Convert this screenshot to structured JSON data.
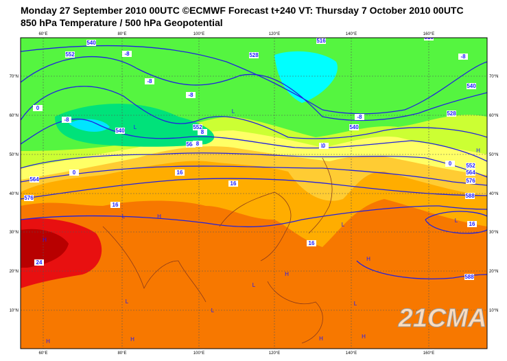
{
  "header": {
    "title": "Monday 27 September 2010 00UTC ©ECMWF Forecast t+240 VT: Thursday 7 October 2010 00UTC",
    "subtitle": "850 hPa Temperature / 500 hPa Geopotential"
  },
  "map": {
    "lon_labels": [
      "60°E",
      "80°E",
      "100°E",
      "120°E",
      "140°E",
      "160°E"
    ],
    "lat_labels": [
      "70°N",
      "60°N",
      "50°N",
      "40°N",
      "30°N",
      "20°N",
      "10°N"
    ],
    "contour_labels": [
      "540",
      "552",
      "-8",
      "-8",
      "-8",
      "516",
      "528",
      "516",
      "528",
      "540",
      "-8",
      "0",
      "-8",
      "540",
      "552",
      "564",
      "0",
      "564",
      "576",
      "8",
      "16",
      "16",
      "16",
      "0",
      "-8",
      "8",
      "552",
      "564",
      "576",
      "588",
      "16",
      "16",
      "24",
      "588",
      "540",
      "0"
    ],
    "pressure_labels": [
      "L",
      "L",
      "L",
      "L",
      "H",
      "H",
      "L",
      "H",
      "L",
      "L",
      "H",
      "L",
      "H",
      "L",
      "H",
      "H",
      "H",
      "L",
      "H"
    ],
    "watermark": "21CMA"
  }
}
